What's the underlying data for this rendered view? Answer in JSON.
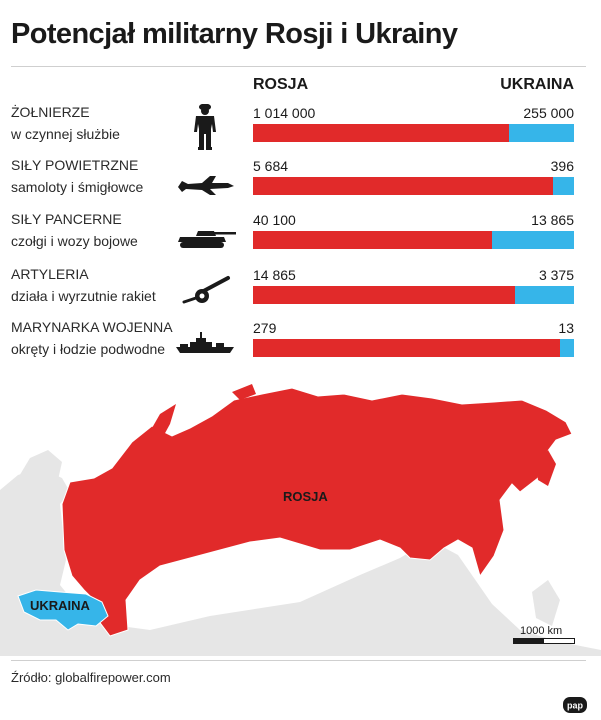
{
  "title": "Potencjał militarny Rosji i Ukrainy",
  "chart_data": {
    "type": "bar",
    "stacked_share": true,
    "series": [
      {
        "name": "ROSJA",
        "color": "#e12a2a",
        "values": [
          1014000,
          5684,
          40100,
          14865,
          279
        ]
      },
      {
        "name": "UKRAINA",
        "color": "#36b5e9",
        "values": [
          255000,
          396,
          13865,
          3375,
          13
        ]
      }
    ],
    "categories": [
      {
        "name": "ŻOŁNIERZE",
        "desc": "w czynnej służbie",
        "icon": "soldier-icon",
        "ru_label": "1 014 000",
        "ua_label": "255 000"
      },
      {
        "name": "SIŁY POWIETRZNE",
        "desc": "samoloty i śmigłowce",
        "icon": "fighter-jet-icon",
        "ru_label": "5 684",
        "ua_label": "396"
      },
      {
        "name": "SIŁY PANCERNE",
        "desc": "czołgi i wozy bojowe",
        "icon": "tank-icon",
        "ru_label": "40 100",
        "ua_label": "13 865"
      },
      {
        "name": "ARTYLERIA",
        "desc": "działa i wyrzutnie rakiet",
        "icon": "artillery-icon",
        "ru_label": "14 865",
        "ua_label": "3 375"
      },
      {
        "name": "MARYNARKA WOJENNA",
        "desc": "okręty i łodzie podwodne",
        "icon": "warship-icon",
        "ru_label": "279",
        "ua_label": "13"
      }
    ]
  },
  "map": {
    "russia_label": "ROSJA",
    "ukraine_label": "UKRAINA",
    "scale_label": "1000 km",
    "colors": {
      "russia": "#e12a2a",
      "ukraine": "#36b5e9",
      "land": "#e6e6e6",
      "border": "#ffffff"
    }
  },
  "source": "Źródło: globalfirepower.com",
  "logo_text": "pap"
}
